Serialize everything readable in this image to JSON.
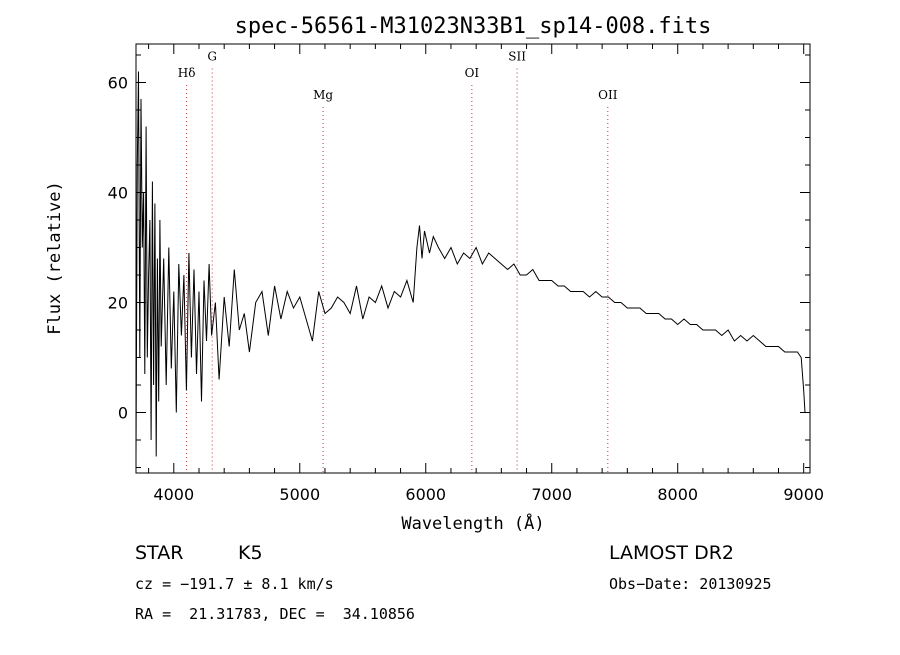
{
  "chart_data": {
    "type": "line",
    "title": "spec-56561-M31023N33B1_sp14-008.fits",
    "xlabel": "Wavelength (Å)",
    "ylabel": "Flux (relative)",
    "xlim": [
      3700,
      9050
    ],
    "ylim": [
      -11,
      67
    ],
    "xticks": [
      4000,
      5000,
      6000,
      7000,
      8000,
      9000
    ],
    "yticks": [
      0,
      20,
      40,
      60
    ],
    "grid": false,
    "series": [
      {
        "color": "#000000",
        "x": [
          3700,
          3710,
          3720,
          3730,
          3740,
          3750,
          3760,
          3770,
          3780,
          3790,
          3800,
          3810,
          3820,
          3830,
          3840,
          3850,
          3860,
          3870,
          3880,
          3890,
          3900,
          3920,
          3940,
          3960,
          3980,
          4000,
          4020,
          4040,
          4060,
          4080,
          4100,
          4120,
          4140,
          4160,
          4180,
          4200,
          4220,
          4240,
          4260,
          4280,
          4300,
          4330,
          4360,
          4400,
          4440,
          4480,
          4520,
          4560,
          4600,
          4650,
          4700,
          4750,
          4800,
          4850,
          4900,
          4950,
          5000,
          5050,
          5100,
          5150,
          5200,
          5250,
          5300,
          5350,
          5400,
          5450,
          5500,
          5550,
          5600,
          5650,
          5700,
          5750,
          5800,
          5850,
          5900,
          5930,
          5950,
          5970,
          5990,
          6010,
          6030,
          6060,
          6100,
          6150,
          6200,
          6250,
          6300,
          6350,
          6400,
          6450,
          6500,
          6550,
          6600,
          6650,
          6700,
          6750,
          6800,
          6850,
          6900,
          6950,
          7000,
          7050,
          7100,
          7150,
          7200,
          7250,
          7300,
          7350,
          7400,
          7450,
          7500,
          7550,
          7600,
          7650,
          7700,
          7750,
          7800,
          7850,
          7900,
          7950,
          8000,
          8050,
          8100,
          8150,
          8200,
          8250,
          8300,
          8350,
          8400,
          8450,
          8500,
          8550,
          8600,
          8650,
          8700,
          8750,
          8800,
          8850,
          8900,
          8950,
          8980,
          9000,
          9010
        ],
        "y": [
          -8,
          45,
          62,
          10,
          57,
          30,
          40,
          7,
          52,
          10,
          25,
          35,
          -5,
          42,
          5,
          38,
          -8,
          28,
          2,
          35,
          12,
          28,
          5,
          30,
          8,
          22,
          0,
          27,
          14,
          25,
          4,
          29,
          10,
          26,
          7,
          22,
          2,
          24,
          13,
          27,
          14,
          20,
          6,
          21,
          12,
          26,
          15,
          18,
          11,
          20,
          22,
          14,
          23,
          17,
          22,
          19,
          21,
          17,
          13,
          22,
          18,
          19,
          21,
          20,
          18,
          23,
          17,
          21,
          20,
          23,
          19,
          22,
          21,
          24,
          20,
          30,
          34,
          28,
          33,
          31,
          29,
          32,
          30,
          28,
          30,
          27,
          29,
          28,
          30,
          27,
          29,
          28,
          27,
          26,
          27,
          25,
          25,
          26,
          24,
          24,
          24,
          23,
          23,
          22,
          22,
          22,
          21,
          22,
          21,
          21,
          20,
          20,
          19,
          19,
          19,
          18,
          18,
          18,
          17,
          17,
          16,
          17,
          16,
          16,
          15,
          15,
          15,
          14,
          15,
          13,
          14,
          13,
          14,
          13,
          12,
          12,
          12,
          11,
          11,
          11,
          10,
          4,
          0
        ]
      }
    ],
    "annotations": [
      {
        "text": "Hδ",
        "x": 4102,
        "y": 61
      },
      {
        "text": "G",
        "x": 4305,
        "y": 64
      },
      {
        "text": "Mg",
        "x": 5185,
        "y": 57
      },
      {
        "text": "OI",
        "x": 6366,
        "y": 61
      },
      {
        "text": "SII",
        "x": 6725,
        "y": 64
      },
      {
        "text": "OII",
        "x": 7445,
        "y": 57
      }
    ],
    "marker_color": "#cc3333"
  },
  "info": {
    "object_type": "STAR",
    "subclass": "K5",
    "survey": "LAMOST DR2",
    "redshift": "cz = −191.7 ± 8.1 km/s",
    "obs_date": "Obs−Date: 20130925",
    "coords": "RA =  21.31783, DEC =  34.10856"
  }
}
